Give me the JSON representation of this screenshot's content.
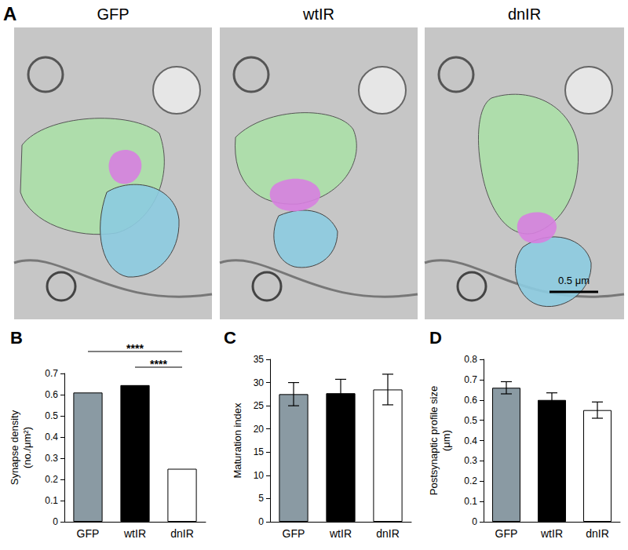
{
  "panel_a": {
    "label": "A",
    "images": [
      "GFP",
      "wtIR",
      "dnIR"
    ],
    "scale_bar": "0.5 μm"
  },
  "chart_data": [
    {
      "type": "bar",
      "title": "B",
      "ylabel": "Synapse density\n(no./μm²)",
      "categories": [
        "GFP",
        "wtIR",
        "dnIR"
      ],
      "values": [
        0.61,
        0.645,
        0.25
      ],
      "colors": [
        "#8a9aa3",
        "#000000",
        "#ffffff"
      ],
      "ylim": [
        0,
        0.7
      ],
      "yticks": [
        0,
        0.1,
        0.2,
        0.3,
        0.4,
        0.5,
        0.6,
        0.7
      ],
      "grid": false,
      "annotations": [
        {
          "text": "****",
          "from": "GFP",
          "to": "dnIR"
        },
        {
          "text": "****",
          "from": "wtIR",
          "to": "dnIR"
        }
      ]
    },
    {
      "type": "bar",
      "title": "C",
      "ylabel": "Maturation index",
      "categories": [
        "GFP",
        "wtIR",
        "dnIR"
      ],
      "values": [
        27.5,
        27.7,
        28.5
      ],
      "errors": [
        2.5,
        3.0,
        3.3
      ],
      "colors": [
        "#8a9aa3",
        "#000000",
        "#ffffff"
      ],
      "ylim": [
        0,
        35
      ],
      "yticks": [
        0,
        5,
        10,
        15,
        20,
        25,
        30,
        35
      ],
      "grid": false
    },
    {
      "type": "bar",
      "title": "D",
      "ylabel": "Postsynaptic profile size\n(μm)",
      "categories": [
        "GFP",
        "wtIR",
        "dnIR"
      ],
      "values": [
        0.66,
        0.6,
        0.55
      ],
      "errors": [
        0.03,
        0.035,
        0.04
      ],
      "colors": [
        "#8a9aa3",
        "#000000",
        "#ffffff"
      ],
      "ylim": [
        0,
        0.8
      ],
      "yticks": [
        0,
        0.1,
        0.2,
        0.3,
        0.4,
        0.5,
        0.6,
        0.7,
        0.8
      ],
      "grid": false
    }
  ]
}
